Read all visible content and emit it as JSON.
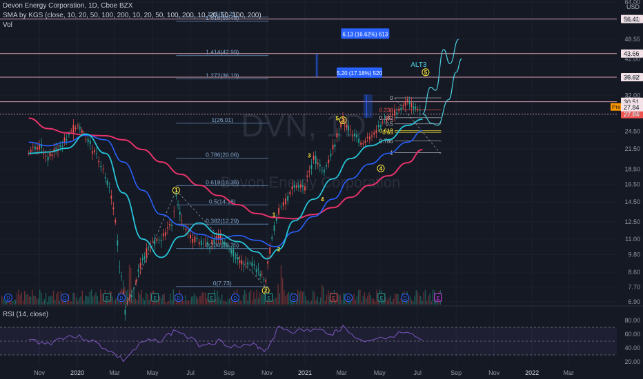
{
  "header": {
    "title": "Devon Energy Corporation, 1D, Cboe BZX",
    "sma_label": "SMA by KGS (close, 10, 20, 50, 100, 200, 10, 20, 50, 100, 200, 10, 20, 50, 100, 200)",
    "vol_label": "Vol",
    "currency": "USD"
  },
  "watermark": {
    "ticker": "DVN, 1D",
    "name": "Devon Energy Corporation"
  },
  "rsi": {
    "label": "RSI (14, close)",
    "ticks": [
      "80.00",
      "60.00",
      "40.00",
      "20.00"
    ]
  },
  "colors": {
    "bg": "#151924",
    "ma_pink": "#e8336b",
    "ma_blue": "#2962ff",
    "ma_cyan": "#26c6da",
    "up": "#26a69a",
    "down": "#ef5350",
    "fib": "#5b7fa6",
    "rsi": "#7e57c2",
    "wave": "#ffeb3b"
  },
  "chart_data": {
    "type": "line",
    "log_scale": true,
    "ylim": [
      6.9,
      64.0
    ],
    "x_ticks": [
      "Nov",
      "2020",
      "Mar",
      "May",
      "Jul",
      "Sep",
      "Nov",
      "2021",
      "Mar",
      "May",
      "Jul",
      "Sep",
      "Nov",
      "2022",
      "Mar"
    ],
    "y_ticks": [
      "64.00",
      "56.00",
      "48.55",
      "42.00",
      "36.62",
      "32.00",
      "27.84",
      "24.50",
      "21.50",
      "18.50",
      "16.50",
      "14.50",
      "12.50",
      "11.00",
      "9.80",
      "8.60",
      "7.70",
      "6.90"
    ],
    "price_levels": [
      {
        "label": "56.41",
        "value": 56.41,
        "color": "#e57373"
      },
      {
        "label": "43.66",
        "value": 43.66,
        "color": "#e57373"
      },
      {
        "label": "36.62",
        "value": 36.62,
        "color": "#e57373"
      },
      {
        "label": "30.51",
        "value": 30.51,
        "color": "#e57373"
      },
      {
        "label": "27.84",
        "value": 27.84,
        "color": "#ef5350"
      }
    ],
    "pre_badge": {
      "label": "Pre",
      "value": "27.84"
    },
    "fib_extension": [
      {
        "label": "1.65(57.25)",
        "value": 57.25
      },
      {
        "label": "1.618(55.48)",
        "value": 55.48
      },
      {
        "label": "1.414(42.99)",
        "value": 42.99
      },
      {
        "label": "1.272(36.19)",
        "value": 36.19
      },
      {
        "label": "1(26.01)",
        "value": 26.01
      },
      {
        "label": "0.786(20.06)",
        "value": 20.06
      },
      {
        "label": "0.618(16.36)",
        "value": 16.36
      },
      {
        "label": "0.5(14.18)",
        "value": 14.18
      },
      {
        "label": "0.382(12.29)",
        "value": 12.29
      },
      {
        "label": "0.236(10.25)",
        "value": 10.25
      },
      {
        "label": "0(7.73)",
        "value": 7.73
      }
    ],
    "fib_retracement": [
      {
        "label": "0",
        "value": 31.4
      },
      {
        "label": "0.236",
        "value": 28.7
      },
      {
        "label": "0.382",
        "value": 27.1
      },
      {
        "label": "0.5",
        "value": 25.9
      },
      {
        "label": "0.618",
        "value": 24.6
      },
      {
        "label": "0.65",
        "value": 24.3
      },
      {
        "label": "0.786",
        "value": 22.8
      },
      {
        "label": "1",
        "value": 20.9
      }
    ],
    "callouts": [
      {
        "label": "6.13 (16.62%) 613"
      },
      {
        "label": "5.20 (17.18%) 520"
      }
    ],
    "alt_label": "ALT3",
    "wave_labels": [
      {
        "label": "1",
        "date": "2020-06-08",
        "value": 15.8,
        "circled": true
      },
      {
        "label": "2",
        "date": "2020-10-30",
        "value": 7.5,
        "circled": true
      },
      {
        "label": "1",
        "date": "2020-11-12",
        "value": 13.2,
        "circled": false
      },
      {
        "label": "2",
        "date": "2020-11-20",
        "value": 10.2,
        "circled": false
      },
      {
        "label": "3",
        "date": "2021-01-08",
        "value": 20.5,
        "circled": false
      },
      {
        "label": "4",
        "date": "2021-01-29",
        "value": 14.8,
        "circled": false
      },
      {
        "label": "5",
        "date": "2021-02-22",
        "value": 27.0,
        "circled": false
      },
      {
        "label": "3",
        "date": "2021-03-03",
        "value": 26.6,
        "circled": true
      },
      {
        "label": "4",
        "date": "2021-05-03",
        "value": 18.6,
        "circled": true
      },
      {
        "label": "5",
        "date": "2021-07-14",
        "value": 38.0,
        "circled": true
      }
    ],
    "series": [
      {
        "name": "Close",
        "values": [
          [
            "2019-10-15",
            21.0
          ],
          [
            "2019-11-01",
            21.8
          ],
          [
            "2019-11-15",
            20.4
          ],
          [
            "2019-12-01",
            21.2
          ],
          [
            "2019-12-15",
            23.6
          ],
          [
            "2020-01-02",
            25.8
          ],
          [
            "2020-01-15",
            23.4
          ],
          [
            "2020-02-01",
            20.4
          ],
          [
            "2020-02-15",
            17.6
          ],
          [
            "2020-02-28",
            14.2
          ],
          [
            "2020-03-09",
            9.2
          ],
          [
            "2020-03-18",
            6.5
          ],
          [
            "2020-04-01",
            7.6
          ],
          [
            "2020-04-15",
            9.4
          ],
          [
            "2020-05-01",
            10.8
          ],
          [
            "2020-05-15",
            10.9
          ],
          [
            "2020-06-01",
            12.5
          ],
          [
            "2020-06-08",
            15.2
          ],
          [
            "2020-06-20",
            12.0
          ],
          [
            "2020-07-01",
            11.1
          ],
          [
            "2020-07-15",
            10.8
          ],
          [
            "2020-08-01",
            10.5
          ],
          [
            "2020-08-15",
            11.2
          ],
          [
            "2020-09-01",
            10.3
          ],
          [
            "2020-09-15",
            9.4
          ],
          [
            "2020-10-01",
            9.2
          ],
          [
            "2020-10-15",
            8.8
          ],
          [
            "2020-10-30",
            8.0
          ],
          [
            "2020-11-09",
            11.2
          ],
          [
            "2020-11-20",
            13.5
          ],
          [
            "2020-12-01",
            14.6
          ],
          [
            "2020-12-15",
            16.2
          ],
          [
            "2021-01-01",
            16.1
          ],
          [
            "2021-01-15",
            20.2
          ],
          [
            "2021-02-01",
            18.0
          ],
          [
            "2021-02-15",
            21.5
          ],
          [
            "2021-03-03",
            26.6
          ],
          [
            "2021-03-15",
            24.5
          ],
          [
            "2021-04-01",
            22.5
          ],
          [
            "2021-04-15",
            23.2
          ],
          [
            "2021-05-03",
            25.5
          ],
          [
            "2021-05-15",
            27.0
          ],
          [
            "2021-06-01",
            28.7
          ],
          [
            "2021-06-15",
            30.6
          ],
          [
            "2021-07-01",
            28.5
          ],
          [
            "2021-07-09",
            27.84
          ]
        ]
      },
      {
        "name": "SMA 50",
        "values": [
          [
            "2019-10-15",
            20.8
          ],
          [
            "2019-11-15",
            21.0
          ],
          [
            "2019-12-15",
            21.6
          ],
          [
            "2020-01-15",
            24.0
          ],
          [
            "2020-02-15",
            20.8
          ],
          [
            "2020-03-15",
            15.5
          ],
          [
            "2020-04-15",
            11.0
          ],
          [
            "2020-05-15",
            9.6
          ],
          [
            "2020-06-15",
            11.2
          ],
          [
            "2020-07-15",
            12.4
          ],
          [
            "2020-08-15",
            11.4
          ],
          [
            "2020-09-15",
            10.8
          ],
          [
            "2020-10-15",
            10.0
          ],
          [
            "2020-11-01",
            9.5
          ],
          [
            "2020-11-20",
            10.2
          ],
          [
            "2020-12-15",
            12.6
          ],
          [
            "2021-01-15",
            14.8
          ],
          [
            "2021-02-15",
            17.2
          ],
          [
            "2021-03-15",
            20.0
          ],
          [
            "2021-04-15",
            22.0
          ],
          [
            "2021-05-15",
            23.0
          ],
          [
            "2021-06-15",
            25.6
          ],
          [
            "2021-07-09",
            26.8
          ]
        ]
      },
      {
        "name": "SMA 100",
        "values": [
          [
            "2019-10-15",
            22.6
          ],
          [
            "2019-11-15",
            22.0
          ],
          [
            "2019-12-15",
            22.6
          ],
          [
            "2020-01-15",
            23.8
          ],
          [
            "2020-02-15",
            23.0
          ],
          [
            "2020-03-15",
            19.5
          ],
          [
            "2020-04-15",
            15.8
          ],
          [
            "2020-05-15",
            13.2
          ],
          [
            "2020-06-15",
            12.2
          ],
          [
            "2020-07-15",
            11.4
          ],
          [
            "2020-08-15",
            11.0
          ],
          [
            "2020-09-15",
            11.3
          ],
          [
            "2020-10-15",
            10.9
          ],
          [
            "2020-11-15",
            10.4
          ],
          [
            "2020-12-15",
            11.6
          ],
          [
            "2021-01-15",
            13.0
          ],
          [
            "2021-02-15",
            14.8
          ],
          [
            "2021-03-15",
            17.2
          ],
          [
            "2021-04-15",
            19.2
          ],
          [
            "2021-05-15",
            20.8
          ],
          [
            "2021-06-15",
            22.6
          ],
          [
            "2021-07-09",
            24.6
          ]
        ]
      },
      {
        "name": "SMA 200",
        "values": [
          [
            "2019-10-15",
            27.0
          ],
          [
            "2019-11-15",
            25.0
          ],
          [
            "2019-12-15",
            24.2
          ],
          [
            "2020-01-15",
            23.8
          ],
          [
            "2020-02-15",
            23.7
          ],
          [
            "2020-03-15",
            23.0
          ],
          [
            "2020-04-15",
            21.4
          ],
          [
            "2020-05-15",
            19.5
          ],
          [
            "2020-06-15",
            17.8
          ],
          [
            "2020-07-15",
            16.4
          ],
          [
            "2020-08-15",
            15.2
          ],
          [
            "2020-09-15",
            14.2
          ],
          [
            "2020-10-15",
            13.3
          ],
          [
            "2020-11-15",
            12.9
          ],
          [
            "2020-12-15",
            12.8
          ],
          [
            "2021-01-15",
            13.2
          ],
          [
            "2021-02-15",
            13.9
          ],
          [
            "2021-03-15",
            15.0
          ],
          [
            "2021-04-15",
            16.4
          ],
          [
            "2021-05-15",
            17.6
          ],
          [
            "2021-06-15",
            19.4
          ],
          [
            "2021-07-09",
            21.4
          ]
        ]
      },
      {
        "name": "Projection",
        "values": [
          [
            "2021-07-09",
            27.84
          ],
          [
            "2021-07-22",
            34.0
          ],
          [
            "2021-07-30",
            33.2
          ],
          [
            "2021-08-12",
            45.0
          ],
          [
            "2021-08-22",
            40.5
          ],
          [
            "2021-09-05",
            48.5
          ]
        ]
      },
      {
        "name": "Projection ALT",
        "values": [
          [
            "2021-07-09",
            27.84
          ],
          [
            "2021-07-24",
            26.0
          ],
          [
            "2021-08-02",
            25.6
          ],
          [
            "2021-08-20",
            31.0
          ],
          [
            "2021-09-01",
            38.0
          ],
          [
            "2021-09-10",
            42.0
          ]
        ]
      }
    ],
    "events": {
      "dividends": [
        "2019-09-12",
        "2019-12-12",
        "2020-03-12",
        "2020-06-12",
        "2020-09-11",
        "2020-12-14",
        "2021-03-12",
        "2021-06-11"
      ],
      "earnings": [
        "2020-02-18",
        "2020-05-05",
        "2020-08-04",
        "2020-11-04",
        "2021-02-16",
        "2021-05-04",
        "2021-08-03"
      ]
    },
    "rsi_values": [
      [
        "2019-10-15",
        52
      ],
      [
        "2019-11-15",
        46
      ],
      [
        "2019-12-15",
        58
      ],
      [
        "2020-01-15",
        54
      ],
      [
        "2020-02-15",
        40
      ],
      [
        "2020-03-15",
        22
      ],
      [
        "2020-04-15",
        48
      ],
      [
        "2020-05-15",
        52
      ],
      [
        "2020-06-08",
        66
      ],
      [
        "2020-07-15",
        45
      ],
      [
        "2020-08-15",
        50
      ],
      [
        "2020-09-15",
        41
      ],
      [
        "2020-10-15",
        44
      ],
      [
        "2020-10-30",
        36
      ],
      [
        "2020-11-20",
        70
      ],
      [
        "2020-12-15",
        64
      ],
      [
        "2021-01-15",
        66
      ],
      [
        "2021-02-15",
        62
      ],
      [
        "2021-03-03",
        70
      ],
      [
        "2021-04-01",
        50
      ],
      [
        "2021-05-03",
        56
      ],
      [
        "2021-06-15",
        62
      ],
      [
        "2021-07-09",
        48
      ]
    ]
  }
}
